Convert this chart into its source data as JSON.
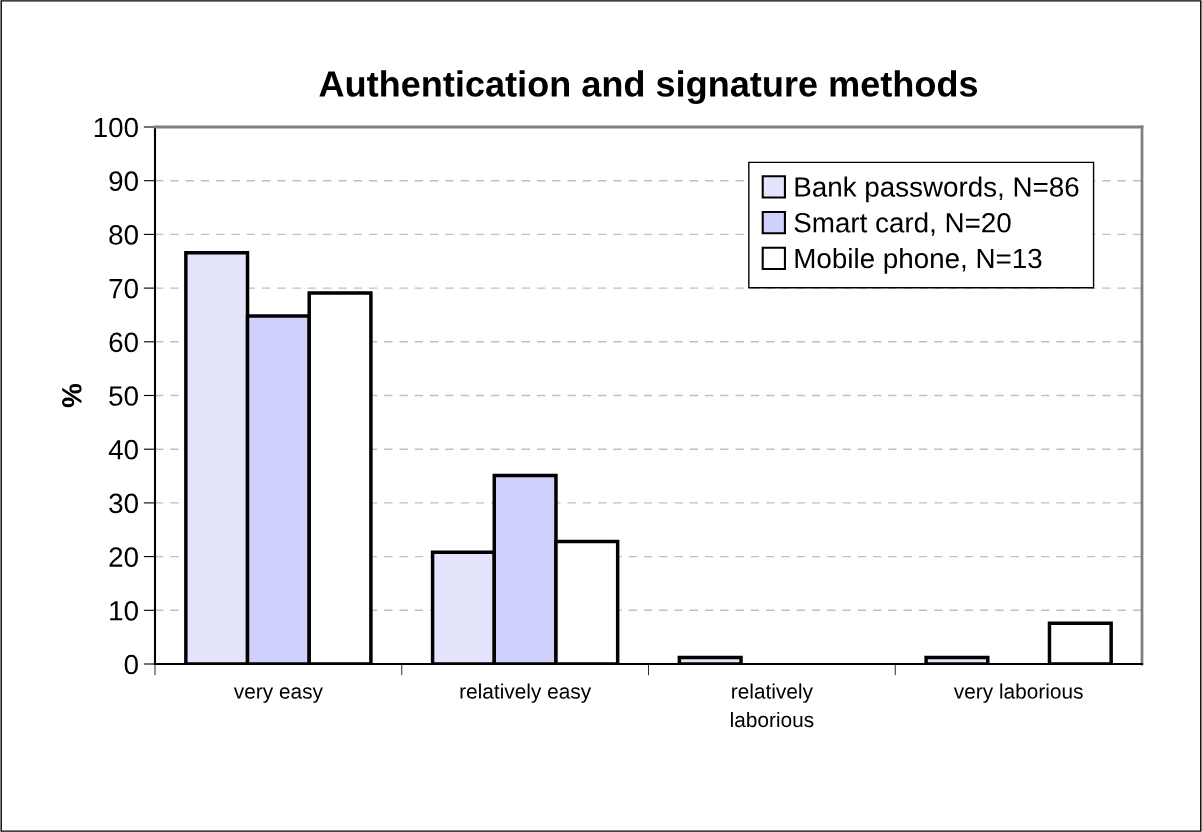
{
  "chart_data": {
    "type": "bar",
    "title": "Authentication and signature methods",
    "ylabel": "%",
    "categories": [
      "very easy",
      "relatively easy",
      "relatively\nlaborious",
      "very laborious"
    ],
    "series": [
      {
        "name": "Bank passwords, N=86",
        "color": "#e4e4fc",
        "values": [
          76.6,
          20.8,
          1.2,
          1.2
        ]
      },
      {
        "name": "Smart card, N=20",
        "color": "#d0d0fc",
        "values": [
          64.8,
          35.1,
          null,
          null
        ]
      },
      {
        "name": "Mobile phone, N=13",
        "color": "#ffffff",
        "values": [
          69.1,
          22.8,
          null,
          7.6
        ]
      }
    ],
    "ylim": [
      0,
      100
    ],
    "yticks": [
      0,
      10,
      20,
      30,
      40,
      50,
      60,
      70,
      80,
      90,
      100
    ],
    "grid": "y",
    "legend": "top right"
  }
}
